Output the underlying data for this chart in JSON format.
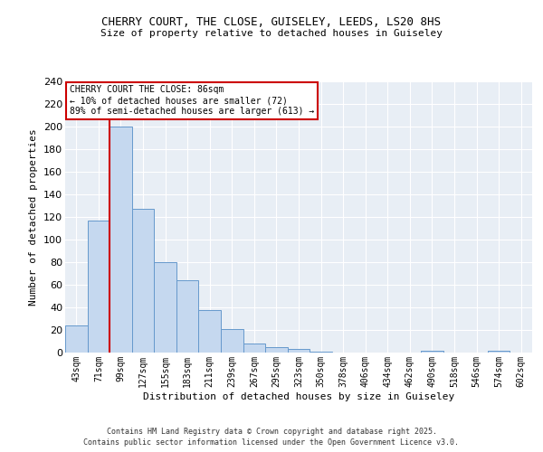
{
  "title1": "CHERRY COURT, THE CLOSE, GUISELEY, LEEDS, LS20 8HS",
  "title2": "Size of property relative to detached houses in Guiseley",
  "xlabel": "Distribution of detached houses by size in Guiseley",
  "ylabel": "Number of detached properties",
  "bins": [
    "43sqm",
    "71sqm",
    "99sqm",
    "127sqm",
    "155sqm",
    "183sqm",
    "211sqm",
    "239sqm",
    "267sqm",
    "295sqm",
    "323sqm",
    "350sqm",
    "378sqm",
    "406sqm",
    "434sqm",
    "462sqm",
    "490sqm",
    "518sqm",
    "546sqm",
    "574sqm",
    "602sqm"
  ],
  "values": [
    24,
    117,
    200,
    127,
    80,
    64,
    38,
    21,
    8,
    5,
    3,
    1,
    0,
    0,
    0,
    0,
    2,
    0,
    0,
    2,
    0
  ],
  "bar_color": "#c5d8ef",
  "bar_edge_color": "#6699cc",
  "vline_x": 1.5,
  "vline_color": "#cc0000",
  "annotation_line1": "CHERRY COURT THE CLOSE: 86sqm",
  "annotation_line2": "← 10% of detached houses are smaller (72)",
  "annotation_line3": "89% of semi-detached houses are larger (613) →",
  "annotation_box_color": "#ffffff",
  "annotation_box_edge_color": "#cc0000",
  "ylim": [
    0,
    240
  ],
  "yticks": [
    0,
    20,
    40,
    60,
    80,
    100,
    120,
    140,
    160,
    180,
    200,
    220,
    240
  ],
  "bg_color": "#e8eef5",
  "grid_color": "#ffffff",
  "footer1": "Contains HM Land Registry data © Crown copyright and database right 2025.",
  "footer2": "Contains public sector information licensed under the Open Government Licence v3.0."
}
